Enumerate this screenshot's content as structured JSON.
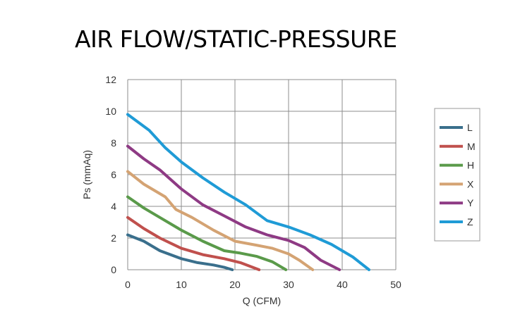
{
  "chart_data": {
    "type": "line",
    "title": "AIR FLOW/STATIC-PRESSURE",
    "xlabel": "Q (CFM)",
    "ylabel": "Ps (mmAq)",
    "xlim": [
      0,
      50
    ],
    "ylim": [
      0,
      12
    ],
    "xticks": [
      0,
      10,
      20,
      30,
      40,
      50
    ],
    "yticks": [
      0,
      2,
      4,
      6,
      8,
      10,
      12
    ],
    "grid": true,
    "legend_position": "right",
    "series": [
      {
        "name": "L",
        "color": "#3a6f8c",
        "points": [
          [
            0,
            2.2
          ],
          [
            3,
            1.8
          ],
          [
            6,
            1.2
          ],
          [
            10,
            0.7
          ],
          [
            13,
            0.45
          ],
          [
            16,
            0.3
          ],
          [
            18,
            0.15
          ],
          [
            19.5,
            0
          ]
        ]
      },
      {
        "name": "M",
        "color": "#c0504d",
        "points": [
          [
            0,
            3.3
          ],
          [
            3,
            2.6
          ],
          [
            6,
            2.0
          ],
          [
            10,
            1.35
          ],
          [
            14,
            0.95
          ],
          [
            18,
            0.7
          ],
          [
            21,
            0.45
          ],
          [
            24.5,
            0
          ]
        ]
      },
      {
        "name": "H",
        "color": "#5a9a4a",
        "points": [
          [
            0,
            4.6
          ],
          [
            3,
            3.9
          ],
          [
            6,
            3.3
          ],
          [
            10,
            2.5
          ],
          [
            14,
            1.8
          ],
          [
            18,
            1.2
          ],
          [
            21,
            1.05
          ],
          [
            24,
            0.85
          ],
          [
            27,
            0.5
          ],
          [
            29.5,
            0
          ]
        ]
      },
      {
        "name": "X",
        "color": "#d4a373",
        "points": [
          [
            0,
            6.2
          ],
          [
            3,
            5.4
          ],
          [
            7,
            4.6
          ],
          [
            9,
            3.8
          ],
          [
            12,
            3.3
          ],
          [
            16,
            2.5
          ],
          [
            20,
            1.8
          ],
          [
            24,
            1.55
          ],
          [
            27,
            1.35
          ],
          [
            30,
            1.0
          ],
          [
            32,
            0.6
          ],
          [
            34.5,
            0
          ]
        ]
      },
      {
        "name": "Y",
        "color": "#8e3a84",
        "points": [
          [
            0,
            7.8
          ],
          [
            3,
            7.0
          ],
          [
            6,
            6.3
          ],
          [
            10,
            5.1
          ],
          [
            14,
            4.1
          ],
          [
            18,
            3.4
          ],
          [
            22,
            2.7
          ],
          [
            26,
            2.2
          ],
          [
            30,
            1.85
          ],
          [
            33,
            1.4
          ],
          [
            36,
            0.6
          ],
          [
            39.5,
            0
          ]
        ]
      },
      {
        "name": "Z",
        "color": "#1f9bd6",
        "points": [
          [
            0,
            9.8
          ],
          [
            4,
            8.8
          ],
          [
            7,
            7.7
          ],
          [
            10,
            6.8
          ],
          [
            14,
            5.8
          ],
          [
            18,
            4.9
          ],
          [
            22,
            4.1
          ],
          [
            26,
            3.1
          ],
          [
            30,
            2.7
          ],
          [
            34,
            2.2
          ],
          [
            38,
            1.6
          ],
          [
            42,
            0.8
          ],
          [
            45,
            0
          ]
        ]
      }
    ]
  }
}
